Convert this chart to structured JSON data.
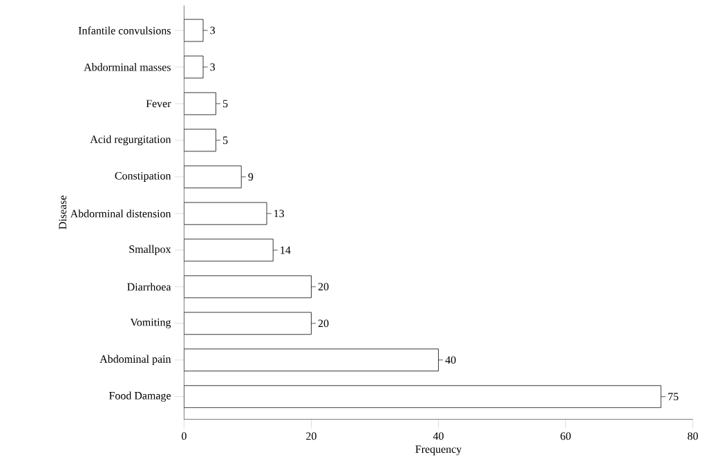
{
  "chart_data": {
    "type": "bar",
    "orientation": "horizontal",
    "xlabel": "Frequency",
    "ylabel": "Disease",
    "categories": [
      "Infantile convulsions",
      "Abdorminal masses",
      "Fever",
      "Acid regurgitation",
      "Constipation",
      "Abdorminal distension",
      "Smallpox",
      "Diarrhoea",
      "Vomiting",
      "Abdominal pain",
      "Food Damage"
    ],
    "values": [
      3,
      3,
      5,
      5,
      9,
      13,
      14,
      20,
      20,
      40,
      75
    ],
    "color": "#ffffff",
    "data_labels": true,
    "xlim": [
      0,
      80
    ],
    "xticks": [
      0,
      20,
      40,
      60,
      80
    ],
    "grid": false
  }
}
